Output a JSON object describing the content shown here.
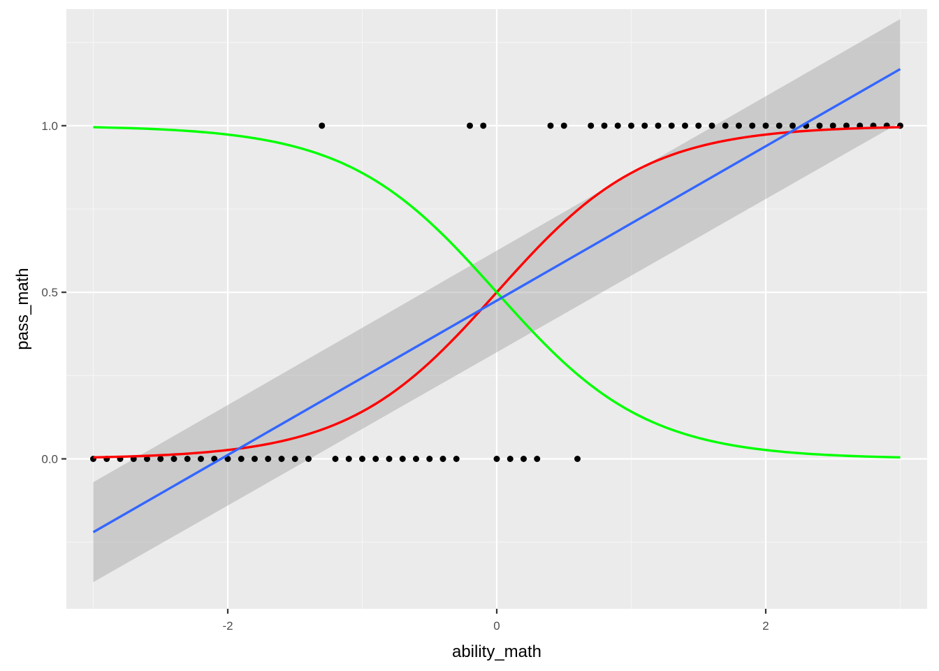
{
  "chart_data": {
    "type": "scatter",
    "title": "",
    "xlabel": "ability_math",
    "ylabel": "pass_math",
    "xlim": [
      -3.2,
      3.2
    ],
    "ylim": [
      -0.45,
      1.35
    ],
    "x_ticks": [
      -2,
      0,
      2
    ],
    "x_tick_labels": [
      "-2",
      "0",
      "2"
    ],
    "y_ticks": [
      0.0,
      0.5,
      1.0
    ],
    "y_tick_labels": [
      "0.0",
      "0.5",
      "1.0"
    ],
    "grid": true,
    "legend": "none",
    "colors": {
      "panel_background": "#ebebeb",
      "grid_major": "#ffffff",
      "grid_minor": "#f5f5f5",
      "points": "#000000",
      "linear_fit": "#3366ff",
      "confidence_band": "#999999",
      "logistic_fit": "#ff0000",
      "inverse_logistic": "#00ff00"
    },
    "points": {
      "x_at_y1": [
        -1.3,
        -0.2,
        -0.1,
        0.4,
        0.5,
        0.7,
        0.8,
        0.9,
        1.0,
        1.1,
        1.2,
        1.3,
        1.4,
        1.5,
        1.6,
        1.7,
        1.8,
        1.9,
        2.0,
        2.1,
        2.2,
        2.3,
        2.4,
        2.5,
        2.6,
        2.7,
        2.8,
        2.9,
        3.0
      ],
      "x_at_y0": [
        -3.0,
        -2.9,
        -2.8,
        -2.7,
        -2.6,
        -2.5,
        -2.4,
        -2.3,
        -2.2,
        -2.1,
        -2.0,
        -1.9,
        -1.8,
        -1.7,
        -1.6,
        -1.5,
        -1.4,
        -1.2,
        -1.1,
        -1.0,
        -0.9,
        -0.8,
        -0.7,
        -0.6,
        -0.5,
        -0.4,
        -0.3,
        0.0,
        0.1,
        0.2,
        0.3,
        0.6
      ]
    },
    "linear_fit": {
      "x": [
        -3.0,
        3.0
      ],
      "y": [
        -0.22,
        1.17
      ],
      "ci_lower": [
        -0.37,
        1.01
      ],
      "ci_upper": [
        -0.07,
        1.32
      ]
    },
    "logistic_curves": [
      {
        "kind": "logistic_fit",
        "slope": 1.8,
        "x_range": [
          -3.0,
          3.0
        ]
      },
      {
        "kind": "inverse_logistic",
        "slope": -1.8,
        "x_range": [
          -3.0,
          3.0
        ]
      }
    ]
  }
}
